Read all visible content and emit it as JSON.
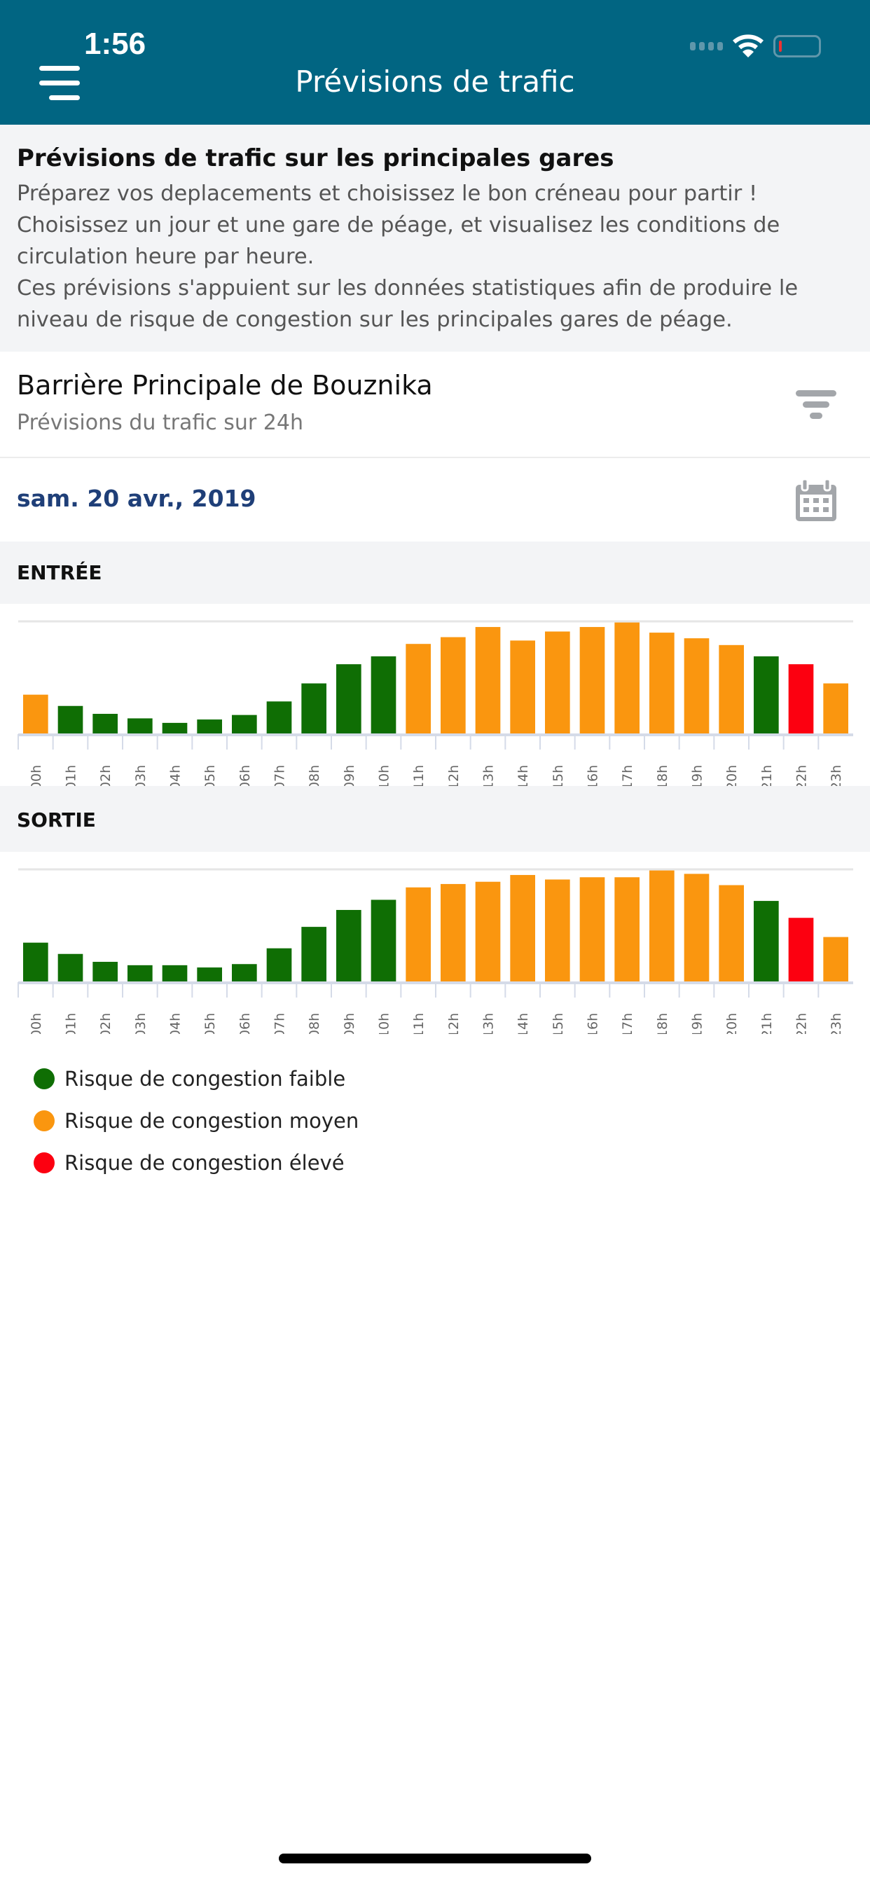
{
  "status_bar": {
    "time": "1:56"
  },
  "header": {
    "title": "Prévisions de trafic"
  },
  "intro": {
    "title": "Prévisions de trafic sur les principales gares",
    "body": "Préparez vos deplacements et choisissez le bon créneau pour partir !\nChoisissez un jour et une gare de péage, et visualisez les conditions de circulation heure par heure.\nCes prévisions s'appuient sur les données statistiques afin de produire le niveau de risque de congestion sur les principales gares de péage."
  },
  "station": {
    "name": "Barrière Principale de Bouznika",
    "subtitle": "Prévisions du trafic sur 24h"
  },
  "date": {
    "value": "sam. 20 avr., 2019"
  },
  "colors": {
    "faible": "#0f6e04",
    "moyen": "#fa960f",
    "eleve": "#fc0010",
    "header": "#016582"
  },
  "chart_data": [
    {
      "type": "bar",
      "title": "ENTRÉE",
      "ylim": [
        0,
        100
      ],
      "categories": [
        "00h",
        "01h",
        "02h",
        "03h",
        "04h",
        "05h",
        "06h",
        "07h",
        "08h",
        "09h",
        "10h",
        "11h",
        "12h",
        "13h",
        "14h",
        "15h",
        "16h",
        "17h",
        "18h",
        "19h",
        "20h",
        "21h",
        "22h",
        "23h"
      ],
      "values": [
        35,
        25,
        18,
        14,
        10,
        13,
        17,
        29,
        45,
        62,
        69,
        80,
        86,
        95,
        83,
        91,
        95,
        99,
        90,
        85,
        79,
        69,
        62,
        45
      ],
      "risk": [
        "moyen",
        "faible",
        "faible",
        "faible",
        "faible",
        "faible",
        "faible",
        "faible",
        "faible",
        "faible",
        "faible",
        "moyen",
        "moyen",
        "moyen",
        "moyen",
        "moyen",
        "moyen",
        "moyen",
        "moyen",
        "moyen",
        "moyen",
        "faible",
        "eleve",
        "moyen"
      ]
    },
    {
      "type": "bar",
      "title": "SORTIE",
      "ylim": [
        0,
        100
      ],
      "categories": [
        "00h",
        "01h",
        "02h",
        "03h",
        "04h",
        "05h",
        "06h",
        "07h",
        "08h",
        "09h",
        "10h",
        "11h",
        "12h",
        "13h",
        "14h",
        "15h",
        "16h",
        "17h",
        "18h",
        "19h",
        "20h",
        "21h",
        "22h",
        "23h"
      ],
      "values": [
        35,
        25,
        18,
        15,
        15,
        13,
        16,
        30,
        49,
        64,
        73,
        84,
        87,
        89,
        95,
        91,
        93,
        93,
        99,
        96,
        86,
        72,
        57,
        40
      ],
      "risk": [
        "faible",
        "faible",
        "faible",
        "faible",
        "faible",
        "faible",
        "faible",
        "faible",
        "faible",
        "faible",
        "faible",
        "moyen",
        "moyen",
        "moyen",
        "moyen",
        "moyen",
        "moyen",
        "moyen",
        "moyen",
        "moyen",
        "moyen",
        "faible",
        "eleve",
        "moyen"
      ]
    }
  ],
  "legend": [
    {
      "key": "faible",
      "label": "Risque de congestion faible"
    },
    {
      "key": "moyen",
      "label": "Risque de congestion moyen"
    },
    {
      "key": "eleve",
      "label": "Risque de congestion élevé"
    }
  ]
}
